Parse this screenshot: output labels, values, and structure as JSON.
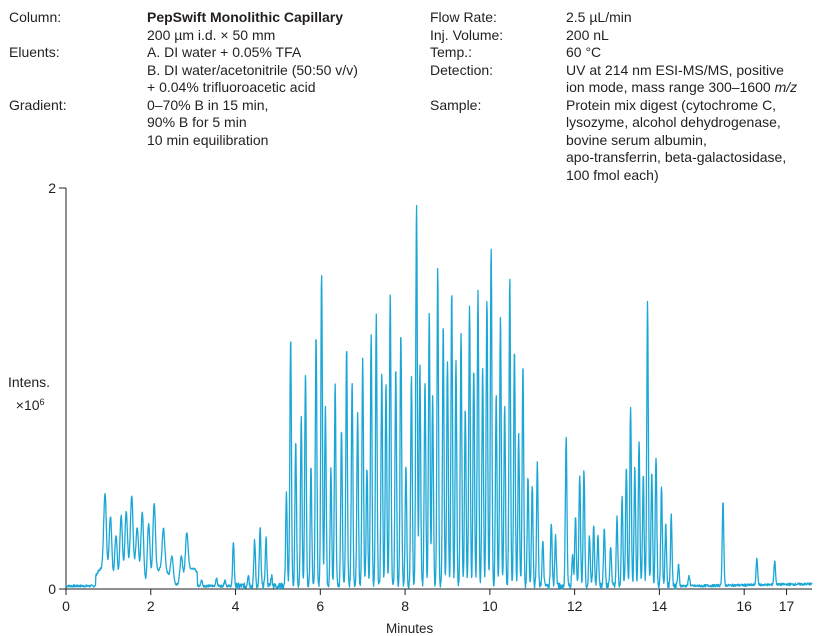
{
  "conditions": {
    "column_label": "Column:",
    "column_name": "PepSwift Monolithic Capillary",
    "column_dims": "200 µm i.d. × 50 mm",
    "eluents_label": "Eluents:",
    "eluent_a": "A. DI water + 0.05% TFA",
    "eluent_b": "B. DI water/acetonitrile (50:50 v/v)",
    "eluent_b2": "+ 0.04% trifluoroacetic acid",
    "gradient_label": "Gradient:",
    "gradient_1": "0–70% B in 15 min,",
    "gradient_2": "90% B for 5 min",
    "gradient_3": "10 min equilibration",
    "flow_label": "Flow Rate:",
    "flow_value": "2.5 µL/min",
    "inj_label": "Inj. Volume:",
    "inj_value": "200 nL",
    "temp_label": "Temp.:",
    "temp_value": "60 °C",
    "detection_label": "Detection:",
    "detection_1": "UV at 214 nm ESI-MS/MS, positive",
    "detection_2": "ion mode, mass range 300–1600",
    "detection_2_unit": "m/z",
    "sample_label": "Sample:",
    "sample_1": "Protein mix digest (cytochrome C,",
    "sample_2": "lysozyme, alcohol dehydrogenase,",
    "sample_3": "bovine serum albumin,",
    "sample_4": "apo-transferrin, beta-galactosidase,",
    "sample_5": "100 fmol each)"
  },
  "chart_data": {
    "type": "line",
    "xlabel": "Minutes",
    "ylabel": "Intens.",
    "ylabel_unit_base": "×10",
    "ylabel_unit_exp": "6",
    "xlim": [
      0,
      17.6
    ],
    "ylim": [
      0,
      2
    ],
    "x_ticks": [
      0,
      2,
      4,
      6,
      8,
      10,
      12,
      14,
      16,
      17
    ],
    "y_ticks": [
      0,
      2
    ],
    "line_color": "#1aa7d6",
    "baseline": 0.015,
    "peaks": [
      [
        0.92,
        0.38
      ],
      [
        1.05,
        0.3
      ],
      [
        1.18,
        0.24
      ],
      [
        1.3,
        0.33
      ],
      [
        1.42,
        0.31
      ],
      [
        1.55,
        0.36
      ],
      [
        1.68,
        0.22
      ],
      [
        1.8,
        0.34
      ],
      [
        1.95,
        0.3
      ],
      [
        2.08,
        0.37
      ],
      [
        2.3,
        0.2
      ],
      [
        2.5,
        0.12
      ],
      [
        2.72,
        0.12
      ],
      [
        2.85,
        0.2
      ],
      [
        3.2,
        0.03
      ],
      [
        3.55,
        0.04
      ],
      [
        3.75,
        0.03
      ],
      [
        3.95,
        0.22
      ],
      [
        4.3,
        0.06
      ],
      [
        4.45,
        0.23
      ],
      [
        4.58,
        0.29
      ],
      [
        4.72,
        0.24
      ],
      [
        4.85,
        0.05
      ],
      [
        5.2,
        0.46
      ],
      [
        5.3,
        1.24
      ],
      [
        5.42,
        0.72
      ],
      [
        5.55,
        0.84
      ],
      [
        5.65,
        1.07
      ],
      [
        5.78,
        0.6
      ],
      [
        5.9,
        1.27
      ],
      [
        6.03,
        1.57
      ],
      [
        6.12,
        0.9
      ],
      [
        6.25,
        0.58
      ],
      [
        6.35,
        1.0
      ],
      [
        6.5,
        0.79
      ],
      [
        6.62,
        1.2
      ],
      [
        6.75,
        1.03
      ],
      [
        6.88,
        0.85
      ],
      [
        7.0,
        1.13
      ],
      [
        7.1,
        0.6
      ],
      [
        7.2,
        1.24
      ],
      [
        7.32,
        1.35
      ],
      [
        7.45,
        1.07
      ],
      [
        7.55,
        1.02
      ],
      [
        7.65,
        1.46
      ],
      [
        7.78,
        1.1
      ],
      [
        7.9,
        1.27
      ],
      [
        8.02,
        0.6
      ],
      [
        8.15,
        1.05
      ],
      [
        8.27,
        1.91
      ],
      [
        8.35,
        1.1
      ],
      [
        8.47,
        1.03
      ],
      [
        8.57,
        1.36
      ],
      [
        8.65,
        0.95
      ],
      [
        8.77,
        1.59
      ],
      [
        8.9,
        1.3
      ],
      [
        9.0,
        1.13
      ],
      [
        9.1,
        1.47
      ],
      [
        9.2,
        1.12
      ],
      [
        9.32,
        1.27
      ],
      [
        9.42,
        0.9
      ],
      [
        9.52,
        1.4
      ],
      [
        9.62,
        1.1
      ],
      [
        9.72,
        1.48
      ],
      [
        9.83,
        1.1
      ],
      [
        9.93,
        1.43
      ],
      [
        10.03,
        1.7
      ],
      [
        10.15,
        0.95
      ],
      [
        10.25,
        1.35
      ],
      [
        10.35,
        0.9
      ],
      [
        10.47,
        1.53
      ],
      [
        10.58,
        1.19
      ],
      [
        10.68,
        0.75
      ],
      [
        10.78,
        1.1
      ],
      [
        10.9,
        0.55
      ],
      [
        11.0,
        0.5
      ],
      [
        11.12,
        0.61
      ],
      [
        11.25,
        0.22
      ],
      [
        11.45,
        0.32
      ],
      [
        11.55,
        0.25
      ],
      [
        11.8,
        0.75
      ],
      [
        11.95,
        0.15
      ],
      [
        12.02,
        0.35
      ],
      [
        12.12,
        0.55
      ],
      [
        12.22,
        0.58
      ],
      [
        12.35,
        0.25
      ],
      [
        12.45,
        0.3
      ],
      [
        12.55,
        0.25
      ],
      [
        12.7,
        0.3
      ],
      [
        12.85,
        0.2
      ],
      [
        13.0,
        0.35
      ],
      [
        13.12,
        0.45
      ],
      [
        13.22,
        0.6
      ],
      [
        13.32,
        0.9
      ],
      [
        13.42,
        0.6
      ],
      [
        13.52,
        0.73
      ],
      [
        13.62,
        0.55
      ],
      [
        13.72,
        1.42
      ],
      [
        13.82,
        0.58
      ],
      [
        13.92,
        0.65
      ],
      [
        14.05,
        0.5
      ],
      [
        14.15,
        0.3
      ],
      [
        14.28,
        0.35
      ],
      [
        14.45,
        0.1
      ],
      [
        14.7,
        0.05
      ],
      [
        15.5,
        0.42
      ],
      [
        16.3,
        0.13
      ],
      [
        16.72,
        0.12
      ]
    ]
  }
}
